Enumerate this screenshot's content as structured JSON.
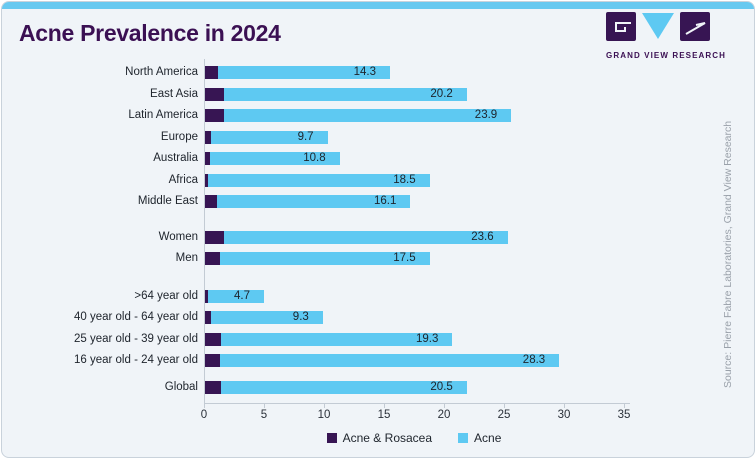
{
  "page": {
    "title": "Acne Prevalence in 2024"
  },
  "logo": {
    "brand": "GRAND VIEW RESEARCH",
    "icon": "gvr-logo-icon"
  },
  "source_note": "Source: Pierre Fabre Laboratories, Grand View Research",
  "colors": {
    "acne_rosacea": "#371553",
    "acne": "#5ec9f2",
    "title": "#3b1053",
    "top_strip": "#67c9f0",
    "card_background": "#f0f4f8",
    "axis": "#c3cbd4"
  },
  "chart_data": {
    "type": "bar",
    "orientation": "horizontal",
    "stacked": true,
    "title": "Acne Prevalence in 2024",
    "xlabel": "",
    "ylabel": "",
    "xlim": [
      0,
      35
    ],
    "xticks": [
      0,
      5,
      10,
      15,
      20,
      25,
      30,
      35
    ],
    "grid": false,
    "legend_position": "bottom-center",
    "legend": [
      "Acne & Rosacea",
      "Acne"
    ],
    "value_labels_series": "Acne",
    "groups": [
      {
        "rows": [
          {
            "label": "North America",
            "acne_rosacea": 1.2,
            "acne": 14.3
          },
          {
            "label": "East Asia",
            "acne_rosacea": 1.7,
            "acne": 20.2
          },
          {
            "label": "Latin America",
            "acne_rosacea": 1.7,
            "acne": 23.9
          },
          {
            "label": "Europe",
            "acne_rosacea": 0.6,
            "acne": 9.7
          },
          {
            "label": "Australia",
            "acne_rosacea": 0.5,
            "acne": 10.8
          },
          {
            "label": "Africa",
            "acne_rosacea": 0.3,
            "acne": 18.5
          },
          {
            "label": "Middle East",
            "acne_rosacea": 1.1,
            "acne": 16.1
          }
        ]
      },
      {
        "rows": [
          {
            "label": "Women",
            "acne_rosacea": 1.7,
            "acne": 23.6
          },
          {
            "label": "Men",
            "acne_rosacea": 1.3,
            "acne": 17.5
          }
        ]
      },
      {
        "rows": [
          {
            "label": ">64 year old",
            "acne_rosacea": 0.3,
            "acne": 4.7
          },
          {
            "label": "40 year old - 64 year old",
            "acne_rosacea": 0.6,
            "acne": 9.3
          },
          {
            "label": "25 year old - 39 year old",
            "acne_rosacea": 1.4,
            "acne": 19.3
          },
          {
            "label": "16 year old - 24 year old",
            "acne_rosacea": 1.3,
            "acne": 28.3
          }
        ]
      },
      {
        "rows": [
          {
            "label": "Global",
            "acne_rosacea": 1.4,
            "acne": 20.5
          }
        ]
      }
    ]
  }
}
